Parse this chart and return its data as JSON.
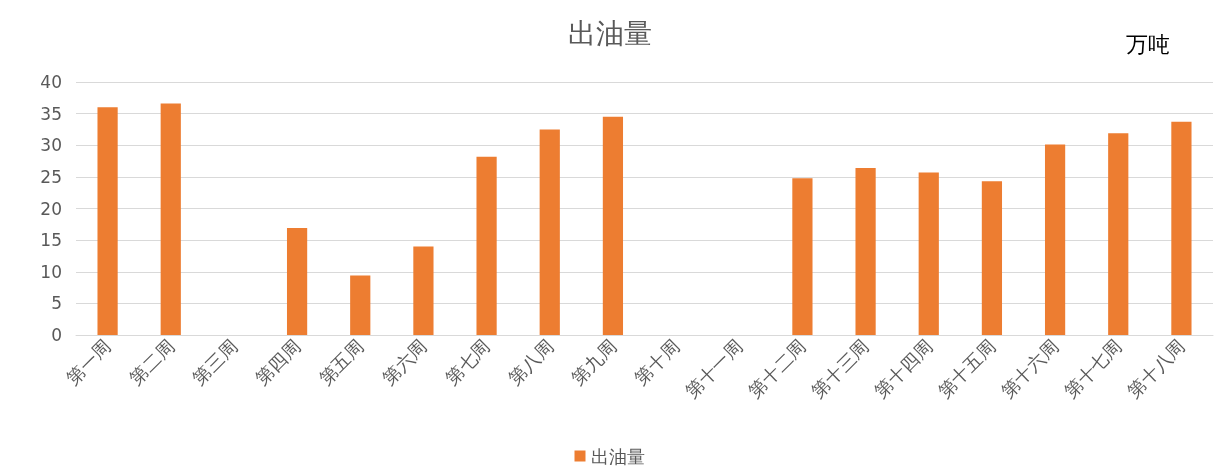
{
  "chart_data": {
    "type": "bar",
    "title": "出油量",
    "annotations": [
      "万吨"
    ],
    "categories": [
      "第一周",
      "第二周",
      "第三周",
      "第四周",
      "第五周",
      "第六周",
      "第七周",
      "第八周",
      "第九周",
      "第十周",
      "第十一周",
      "第十二周",
      "第十三周",
      "第十四周",
      "第十五周",
      "第十六周",
      "第十七周",
      "第十八周"
    ],
    "series": [
      {
        "name": "出油量",
        "color": "#ed7d31",
        "values": [
          36,
          36.6,
          null,
          16.9,
          9.4,
          14,
          28.2,
          32.5,
          34.5,
          null,
          null,
          24.8,
          26.4,
          25.7,
          24.3,
          30.1,
          31.9,
          33.7
        ]
      }
    ],
    "ylim": [
      0,
      40
    ],
    "yticks": [
      0,
      5,
      10,
      15,
      20,
      25,
      30,
      35,
      40
    ],
    "grid": "y",
    "legend": "bottom"
  }
}
